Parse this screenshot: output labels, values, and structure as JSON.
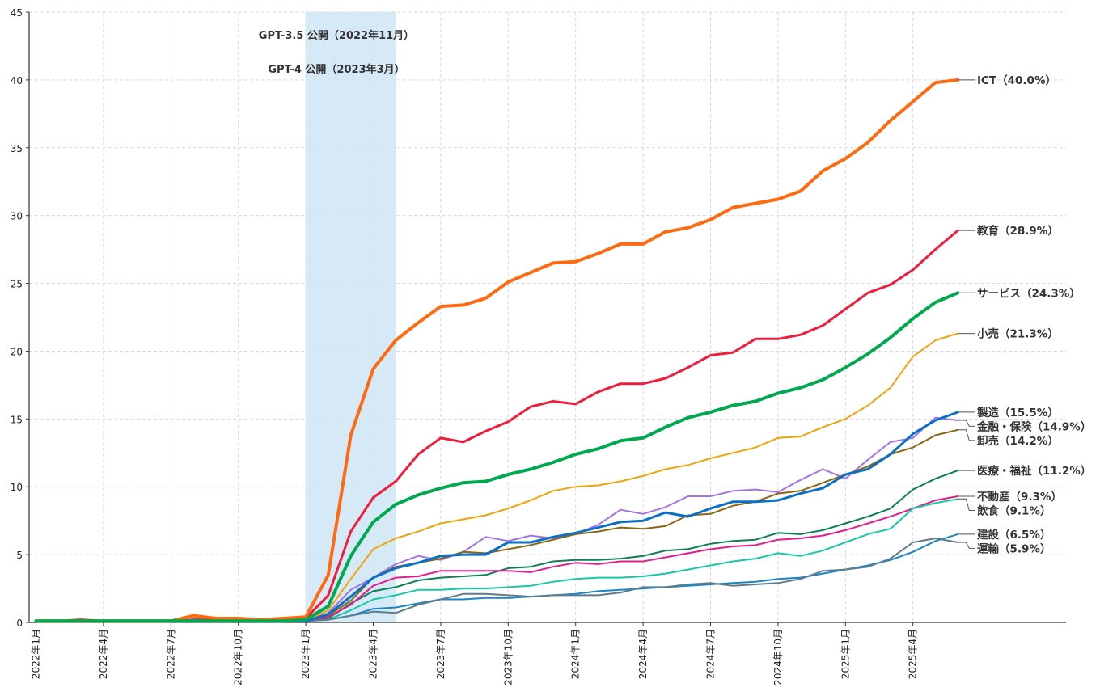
{
  "chart_data": {
    "type": "line",
    "title": "",
    "xlabel": "",
    "ylabel": "",
    "ylim": [
      0,
      45
    ],
    "yticks": [
      0,
      5,
      10,
      15,
      20,
      25,
      30,
      35,
      40,
      45
    ],
    "grid": true,
    "x": [
      "2022年1月",
      "2022年2月",
      "2022年3月",
      "2022年4月",
      "2022年5月",
      "2022年6月",
      "2022年7月",
      "2022年8月",
      "2022年9月",
      "2022年10月",
      "2022年11月",
      "2022年12月",
      "2023年1月",
      "2023年2月",
      "2023年3月",
      "2023年4月",
      "2023年5月",
      "2023年6月",
      "2023年7月",
      "2023年8月",
      "2023年9月",
      "2023年10月",
      "2023年11月",
      "2023年12月",
      "2024年1月",
      "2024年2月",
      "2024年3月",
      "2024年4月",
      "2024年5月",
      "2024年6月",
      "2024年7月",
      "2024年8月",
      "2024年9月",
      "2024年10月",
      "2024年11月",
      "2024年12月",
      "2025年1月",
      "2025年2月",
      "2025年3月",
      "2025年4月",
      "2025年5月",
      "2025年6月"
    ],
    "xtick_labels": [
      "2022年1月",
      "2022年4月",
      "2022年7月",
      "2022年10月",
      "2023年1月",
      "2023年4月",
      "2023年7月",
      "2023年10月",
      "2024年1月",
      "2024年4月",
      "2024年7月",
      "2024年10月",
      "2025年1月",
      "2025年4月"
    ],
    "shaded_region": {
      "from": "2023年1月",
      "to": "2023年5月",
      "color": "#cfe5f4"
    },
    "annotations": [
      "GPT-3.5 公開（2022年11月）",
      "GPT-4 公開（2023年3月）"
    ],
    "series": [
      {
        "name": "ICT",
        "label": "ICT（40.0%）",
        "color": "#ff6a10",
        "width": 4,
        "values": [
          0.1,
          0.1,
          0.1,
          0.1,
          0.1,
          0.1,
          0.1,
          0.5,
          0.3,
          0.3,
          0.2,
          0.3,
          0.4,
          3.5,
          13.8,
          18.7,
          20.8,
          22.1,
          23.3,
          23.4,
          23.9,
          25.1,
          25.8,
          26.5,
          26.6,
          27.2,
          27.9,
          27.9,
          28.8,
          29.1,
          29.7,
          30.6,
          30.9,
          31.2,
          31.8,
          33.3,
          34.2,
          35.4,
          37.0,
          38.4,
          39.8,
          40.0
        ]
      },
      {
        "name": "教育",
        "label": "教育（28.9%）",
        "color": "#f01c3c",
        "width": 3,
        "values": [
          0.1,
          0.1,
          0.2,
          0.1,
          0.1,
          0.1,
          0.1,
          0.2,
          0.2,
          0.2,
          0.2,
          0.3,
          0.3,
          2.0,
          6.7,
          9.2,
          10.4,
          12.4,
          13.6,
          13.3,
          14.1,
          14.8,
          15.9,
          16.3,
          16.1,
          17.0,
          17.6,
          17.6,
          18.0,
          18.8,
          19.7,
          19.9,
          20.9,
          20.9,
          21.2,
          21.9,
          23.1,
          24.3,
          24.9,
          26.0,
          27.5,
          28.9
        ]
      },
      {
        "name": "サービス",
        "label": "サービス（24.3%）",
        "color": "#00a84f",
        "width": 4,
        "values": [
          0.1,
          0.1,
          0.1,
          0.1,
          0.1,
          0.1,
          0.1,
          0.1,
          0.1,
          0.1,
          0.1,
          0.1,
          0.2,
          1.2,
          4.9,
          7.4,
          8.7,
          9.4,
          9.9,
          10.3,
          10.4,
          10.9,
          11.3,
          11.8,
          12.4,
          12.8,
          13.4,
          13.6,
          14.4,
          15.1,
          15.5,
          16.0,
          16.3,
          16.9,
          17.3,
          17.9,
          18.8,
          19.8,
          21.0,
          22.4,
          23.6,
          24.3
        ]
      },
      {
        "name": "小売",
        "label": "小売（21.3%）",
        "color": "#f0a30a",
        "width": 2,
        "values": [
          0.1,
          0.1,
          0.1,
          0.1,
          0.1,
          0.1,
          0.1,
          0.1,
          0.1,
          0.1,
          0.1,
          0.1,
          0.1,
          0.9,
          3.2,
          5.4,
          6.2,
          6.7,
          7.3,
          7.6,
          7.9,
          8.4,
          9.0,
          9.7,
          10.0,
          10.1,
          10.4,
          10.8,
          11.3,
          11.6,
          12.1,
          12.5,
          12.9,
          13.6,
          13.7,
          14.4,
          15.0,
          16.0,
          17.3,
          19.6,
          20.8,
          21.3
        ]
      },
      {
        "name": "製造",
        "label": "製造（15.5%）",
        "color": "#0a70c8",
        "width": 3,
        "values": [
          0.1,
          0.1,
          0.1,
          0.1,
          0.1,
          0.1,
          0.1,
          0.1,
          0.1,
          0.1,
          0.1,
          0.1,
          0.1,
          0.6,
          1.9,
          3.3,
          4.0,
          4.4,
          4.9,
          5.0,
          5.0,
          5.9,
          5.9,
          6.3,
          6.6,
          7.0,
          7.4,
          7.5,
          8.1,
          7.8,
          8.4,
          8.9,
          8.9,
          9.0,
          9.5,
          9.9,
          10.9,
          11.3,
          12.4,
          13.9,
          14.9,
          15.5
        ]
      },
      {
        "name": "金融・保険",
        "label": "金融・保険（14.9%）",
        "color": "#a374e6",
        "width": 2,
        "values": [
          0.1,
          0.1,
          0.1,
          0.1,
          0.1,
          0.1,
          0.1,
          0.1,
          0.1,
          0.1,
          0.1,
          0.1,
          0.1,
          0.7,
          2.4,
          3.3,
          4.3,
          4.9,
          4.6,
          5.2,
          6.3,
          6.0,
          6.4,
          6.2,
          6.5,
          7.2,
          8.3,
          8.0,
          8.5,
          9.3,
          9.3,
          9.7,
          9.8,
          9.6,
          10.5,
          11.3,
          10.6,
          12.0,
          13.3,
          13.6,
          15.1,
          14.9
        ]
      },
      {
        "name": "卸売",
        "label": "卸売（14.2%）",
        "color": "#8c6510",
        "width": 2,
        "values": [
          0.1,
          0.1,
          0.1,
          0.1,
          0.1,
          0.1,
          0.1,
          0.1,
          0.1,
          0.1,
          0.1,
          0.1,
          0.1,
          0.5,
          1.6,
          3.3,
          4.1,
          4.4,
          4.7,
          5.2,
          5.1,
          5.4,
          5.7,
          6.1,
          6.5,
          6.7,
          7.0,
          6.9,
          7.1,
          7.9,
          8.0,
          8.6,
          8.9,
          9.5,
          9.7,
          10.3,
          10.9,
          11.5,
          12.4,
          12.9,
          13.8,
          14.2
        ]
      },
      {
        "name": "医療・福祉",
        "label": "医療・福祉（11.2%）",
        "color": "#0a8054",
        "width": 2,
        "values": [
          0.1,
          0.1,
          0.1,
          0.1,
          0.1,
          0.1,
          0.1,
          0.1,
          0.1,
          0.1,
          0.1,
          0.1,
          0.1,
          0.3,
          1.4,
          2.3,
          2.6,
          3.1,
          3.3,
          3.4,
          3.5,
          4.0,
          4.1,
          4.5,
          4.6,
          4.6,
          4.7,
          4.9,
          5.3,
          5.4,
          5.8,
          6.0,
          6.1,
          6.6,
          6.5,
          6.8,
          7.3,
          7.8,
          8.4,
          9.8,
          10.6,
          11.2
        ]
      },
      {
        "name": "不動産",
        "label": "不動産（9.3%）",
        "color": "#e41c8c",
        "width": 2,
        "values": [
          0.1,
          0.1,
          0.1,
          0.1,
          0.1,
          0.1,
          0.1,
          0.1,
          0.1,
          0.1,
          0.1,
          0.1,
          0.1,
          0.4,
          1.3,
          2.7,
          3.3,
          3.4,
          3.8,
          3.8,
          3.8,
          3.8,
          3.7,
          4.1,
          4.4,
          4.3,
          4.5,
          4.5,
          4.8,
          5.1,
          5.4,
          5.6,
          5.7,
          6.1,
          6.2,
          6.4,
          6.8,
          7.3,
          7.8,
          8.4,
          9.0,
          9.3
        ]
      },
      {
        "name": "飲食",
        "label": "飲食（9.1%）",
        "color": "#18c8a4",
        "width": 2,
        "values": [
          0.1,
          0.1,
          0.1,
          0.1,
          0.1,
          0.1,
          0.1,
          0.1,
          0.1,
          0.1,
          0.1,
          0.1,
          0.1,
          0.2,
          0.9,
          1.7,
          2.0,
          2.4,
          2.4,
          2.5,
          2.5,
          2.6,
          2.7,
          3.0,
          3.2,
          3.3,
          3.3,
          3.4,
          3.6,
          3.9,
          4.2,
          4.5,
          4.7,
          5.1,
          4.9,
          5.3,
          5.9,
          6.5,
          6.9,
          8.4,
          8.8,
          9.1
        ]
      },
      {
        "name": "建設",
        "label": "建設（6.5%）",
        "color": "#1a86c8",
        "width": 2,
        "values": [
          0.1,
          0.1,
          0.1,
          0.1,
          0.1,
          0.1,
          0.1,
          0.1,
          0.1,
          0.1,
          0.1,
          0.1,
          0.1,
          0.2,
          0.5,
          1.0,
          1.1,
          1.4,
          1.7,
          1.7,
          1.8,
          1.8,
          1.9,
          2.0,
          2.1,
          2.3,
          2.4,
          2.5,
          2.6,
          2.7,
          2.8,
          2.9,
          3.0,
          3.2,
          3.3,
          3.6,
          3.9,
          4.2,
          4.6,
          5.2,
          6.0,
          6.5
        ]
      },
      {
        "name": "運輸",
        "label": "運輸（5.9%）",
        "color": "#5d7d8c",
        "width": 2,
        "values": [
          0.1,
          0.1,
          0.1,
          0.1,
          0.1,
          0.1,
          0.1,
          0.1,
          0.1,
          0.1,
          0.1,
          0.1,
          0.1,
          0.2,
          0.5,
          0.8,
          0.7,
          1.3,
          1.7,
          2.1,
          2.1,
          2.0,
          1.9,
          2.0,
          2.0,
          2.0,
          2.2,
          2.6,
          2.6,
          2.8,
          2.9,
          2.7,
          2.8,
          2.9,
          3.2,
          3.8,
          3.9,
          4.1,
          4.7,
          5.9,
          6.2,
          5.9
        ]
      }
    ]
  }
}
